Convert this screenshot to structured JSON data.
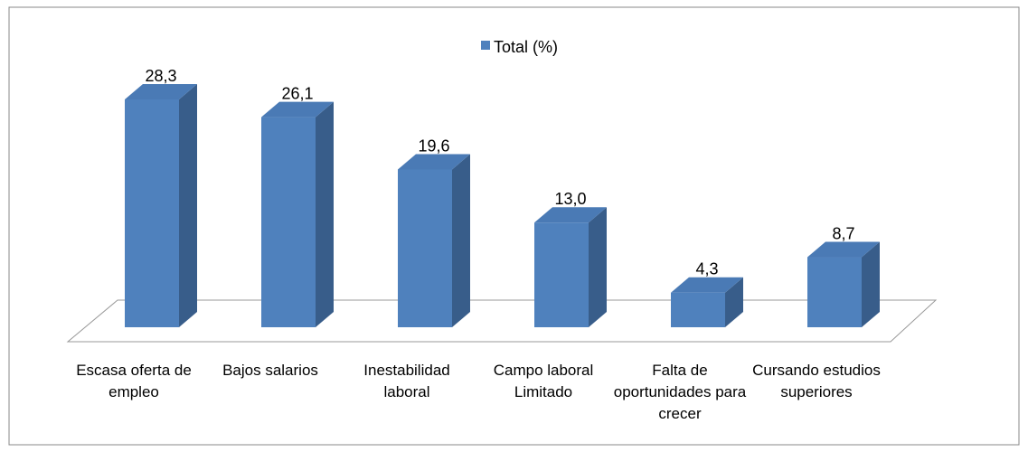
{
  "chart_data": {
    "type": "bar3d",
    "categories": [
      "Escasa oferta de empleo",
      "Bajos salarios",
      "Inestabilidad laboral",
      "Campo laboral Limitado",
      "Falta de oportunidades para crecer",
      "Cursando estudios superiores"
    ],
    "series": [
      {
        "name": "Total  (%)",
        "color": "#4f81bd",
        "values": [
          28.3,
          26.1,
          19.6,
          13.0,
          4.3,
          8.7
        ],
        "value_labels": [
          "28,3",
          "26,1",
          "19,6",
          "13,0",
          "4,3",
          "8,7"
        ]
      }
    ]
  }
}
